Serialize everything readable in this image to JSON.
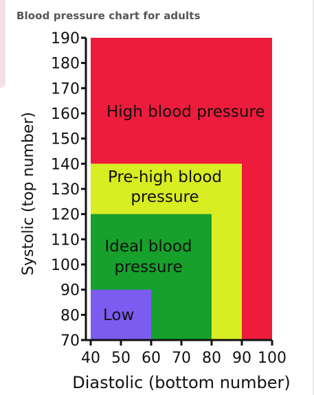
{
  "chart_data": {
    "type": "area",
    "title": "Blood pressure chart for adults",
    "xlabel": "Diastolic (bottom number)",
    "ylabel": "Systolic (top number)",
    "xlim": [
      40,
      100
    ],
    "ylim": [
      70,
      190
    ],
    "x_ticks": [
      40,
      50,
      60,
      70,
      80,
      90,
      100
    ],
    "y_ticks": [
      70,
      80,
      90,
      100,
      110,
      120,
      130,
      140,
      150,
      160,
      170,
      180,
      190
    ],
    "regions": [
      {
        "name": "High blood pressure",
        "color": "#ee1c3c",
        "diastolic_max": 100,
        "systolic_max": 190,
        "label_lines": [
          "High blood pressure"
        ]
      },
      {
        "name": "Pre-high blood pressure",
        "color": "#d8ed22",
        "diastolic_max": 90,
        "systolic_max": 140,
        "label_lines": [
          "Pre-high blood",
          "pressure"
        ]
      },
      {
        "name": "Ideal blood pressure",
        "color": "#17a02c",
        "diastolic_max": 80,
        "systolic_max": 120,
        "label_lines": [
          "Ideal blood",
          "pressure"
        ]
      },
      {
        "name": "Low",
        "color": "#7b5cf0",
        "diastolic_max": 60,
        "systolic_max": 90,
        "label_lines": [
          "Low"
        ]
      }
    ]
  }
}
